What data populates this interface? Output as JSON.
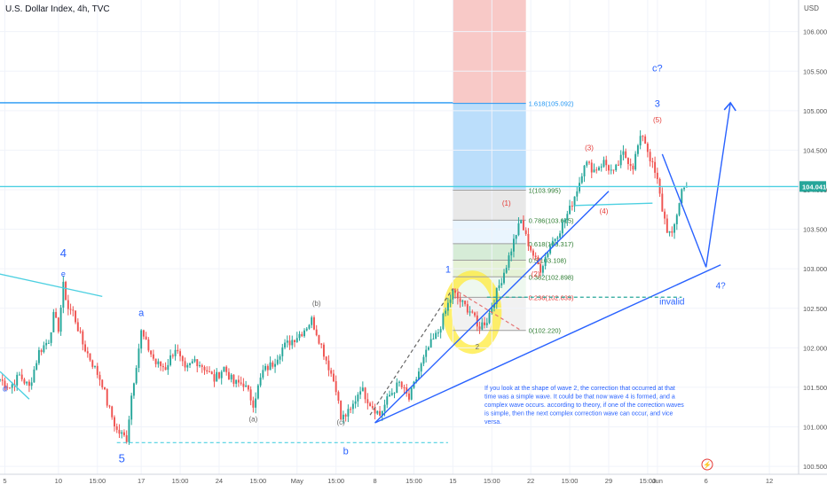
{
  "header": {
    "title": "U.S. Dollar Index, 4h, TVC",
    "currency": "USD"
  },
  "colors": {
    "up": "#26a69a",
    "down": "#ef5350",
    "wave": "#2962ff",
    "sub": "#e53935",
    "cyan": "#4dd0e1",
    "fib_blue": "#2196f3",
    "last_price_bg": "#26a69a",
    "highlight": "#ffeb3b",
    "red_zone": "#f8c9c7",
    "blue_zone": "#bbdefb"
  },
  "chart_data": {
    "type": "candlestick",
    "ylim": [
      100.4,
      106.4
    ],
    "xlim": [
      0,
      164
    ],
    "y_ticks": [
      "106.000",
      "105.500",
      "105.000",
      "104.500",
      "104.000",
      "103.500",
      "103.000",
      "102.500",
      "102.000",
      "101.500",
      "101.000",
      "100.500"
    ],
    "y_tick_values": [
      106.0,
      105.5,
      105.0,
      104.5,
      104.0,
      103.5,
      103.0,
      102.5,
      102.0,
      101.5,
      101.0,
      100.5
    ],
    "x_ticks": [
      {
        "label": "5",
        "x": 1
      },
      {
        "label": "10",
        "x": 12
      },
      {
        "label": "15:00",
        "x": 20
      },
      {
        "label": "17",
        "x": 29
      },
      {
        "label": "15:00",
        "x": 37
      },
      {
        "label": "24",
        "x": 45
      },
      {
        "label": "15:00",
        "x": 53
      },
      {
        "label": "May",
        "x": 61
      },
      {
        "label": "15:00",
        "x": 69
      },
      {
        "label": "8",
        "x": 77
      },
      {
        "label": "15:00",
        "x": 85
      },
      {
        "label": "15",
        "x": 93
      },
      {
        "label": "15:00",
        "x": 101
      },
      {
        "label": "22",
        "x": 109
      },
      {
        "label": "15:00",
        "x": 117
      },
      {
        "label": "29",
        "x": 125
      },
      {
        "label": "15:00",
        "x": 133
      },
      {
        "label": "Jun",
        "x": 135
      },
      {
        "label": "6",
        "x": 145
      },
      {
        "label": "12",
        "x": 158
      }
    ],
    "last_price": "104.041",
    "last_price_value": 104.041,
    "path": [
      [
        0,
        101.6
      ],
      [
        2,
        101.5
      ],
      [
        4,
        101.65
      ],
      [
        6,
        101.5
      ],
      [
        8,
        101.95
      ],
      [
        10,
        102.1
      ],
      [
        11,
        102.4
      ],
      [
        12,
        102.25
      ],
      [
        13,
        102.78
      ],
      [
        14,
        102.5
      ],
      [
        15,
        102.45
      ],
      [
        17,
        102.05
      ],
      [
        19,
        101.8
      ],
      [
        21,
        101.55
      ],
      [
        22,
        101.3
      ],
      [
        24,
        100.95
      ],
      [
        26,
        100.85
      ],
      [
        27,
        101.4
      ],
      [
        28,
        101.8
      ],
      [
        29,
        102.2
      ],
      [
        30,
        102.05
      ],
      [
        32,
        101.8
      ],
      [
        34,
        101.75
      ],
      [
        36,
        102.0
      ],
      [
        38,
        101.7
      ],
      [
        40,
        101.85
      ],
      [
        42,
        101.75
      ],
      [
        44,
        101.6
      ],
      [
        46,
        101.75
      ],
      [
        48,
        101.55
      ],
      [
        50,
        101.55
      ],
      [
        52,
        101.3
      ],
      [
        54,
        101.7
      ],
      [
        56,
        101.8
      ],
      [
        58,
        102.0
      ],
      [
        60,
        102.1
      ],
      [
        62,
        102.2
      ],
      [
        64,
        102.35
      ],
      [
        65,
        102.2
      ],
      [
        67,
        101.85
      ],
      [
        69,
        101.5
      ],
      [
        70,
        101.1
      ],
      [
        72,
        101.2
      ],
      [
        74,
        101.5
      ],
      [
        76,
        101.3
      ],
      [
        78,
        101.15
      ],
      [
        80,
        101.4
      ],
      [
        82,
        101.55
      ],
      [
        84,
        101.35
      ],
      [
        86,
        101.7
      ],
      [
        88,
        102.0
      ],
      [
        90,
        102.2
      ],
      [
        92,
        102.55
      ],
      [
        93,
        102.7
      ],
      [
        95,
        102.55
      ],
      [
        97,
        102.45
      ],
      [
        98,
        102.25
      ],
      [
        100,
        102.35
      ],
      [
        102,
        102.7
      ],
      [
        104,
        103.05
      ],
      [
        106,
        103.45
      ],
      [
        107,
        103.6
      ],
      [
        108,
        103.4
      ],
      [
        110,
        103.1
      ],
      [
        111,
        103.0
      ],
      [
        113,
        103.3
      ],
      [
        115,
        103.5
      ],
      [
        117,
        103.75
      ],
      [
        119,
        104.1
      ],
      [
        120,
        104.35
      ],
      [
        122,
        104.25
      ],
      [
        124,
        104.35
      ],
      [
        126,
        104.2
      ],
      [
        128,
        104.45
      ],
      [
        130,
        104.3
      ],
      [
        131,
        104.55
      ],
      [
        132,
        104.7
      ],
      [
        133,
        104.5
      ],
      [
        134,
        104.3
      ],
      [
        135,
        104.1
      ],
      [
        136,
        103.75
      ],
      [
        137,
        103.5
      ],
      [
        138,
        103.4
      ],
      [
        139,
        103.7
      ],
      [
        140,
        104.0
      ],
      [
        141,
        104.04
      ]
    ],
    "trend_lines": [
      {
        "from": [
          -5,
          103.0
        ],
        "to": [
          21,
          102.65
        ],
        "color": "cyan"
      },
      {
        "from": [
          0,
          101.7
        ],
        "to": [
          6,
          101.35
        ],
        "color": "cyan"
      },
      {
        "from": [
          118,
          103.8
        ],
        "to": [
          134,
          103.83
        ],
        "color": "cyan"
      },
      {
        "from": [
          77,
          101.05
        ],
        "to": [
          125,
          103.98
        ],
        "color": "wave"
      },
      {
        "from": [
          77,
          101.05
        ],
        "to": [
          148,
          103.05
        ],
        "color": "wave"
      },
      {
        "from": [
          136,
          104.45
        ],
        "to": [
          145,
          103.02
        ],
        "color": "wave"
      },
      {
        "from": [
          145,
          103.02
        ],
        "to": [
          150,
          105.1
        ],
        "color": "wave"
      },
      {
        "from": [
          0,
          105.1
        ],
        "to": [
          93,
          105.1
        ],
        "color": "fib_blue"
      },
      {
        "from": [
          0,
          104.04
        ],
        "to": [
          164,
          104.04
        ],
        "color": "cyan"
      }
    ],
    "dashed_lines": [
      {
        "from": [
          24,
          100.8
        ],
        "to": [
          92,
          100.8
        ],
        "color": "cyan"
      },
      {
        "from": [
          100,
          102.64
        ],
        "to": [
          140,
          102.64
        ],
        "color": "teal"
      },
      {
        "from": [
          76,
          101.15
        ],
        "to": [
          93,
          102.75
        ],
        "color": "grey"
      },
      {
        "from": [
          93,
          102.75
        ],
        "to": [
          107,
          102.22
        ],
        "color": "red"
      }
    ],
    "fib": {
      "x_start": 93,
      "x_end": 108,
      "levels": [
        {
          "label": "1.618(105.092)",
          "value": 105.092
        },
        {
          "label": "1(103.995)",
          "value": 103.995
        },
        {
          "label": "0.786(103.615)",
          "value": 103.615
        },
        {
          "label": "0.618(103.317)",
          "value": 103.317
        },
        {
          "label": "0.5(103.108)",
          "value": 103.108
        },
        {
          "label": "0.382(102.898)",
          "value": 102.898
        },
        {
          "label": "0.236(102.639)",
          "value": 102.639
        },
        {
          "label": "0(102.220)",
          "value": 102.22
        }
      ]
    },
    "wave_labels": [
      {
        "text": "4",
        "x": 13,
        "y": 103.15,
        "color": "wave",
        "size": 13
      },
      {
        "text": "e",
        "x": 13,
        "y": 102.9,
        "color": "wave",
        "size": 9
      },
      {
        "text": "d",
        "x": 1,
        "y": 101.45,
        "color": "wave",
        "size": 9
      },
      {
        "text": "5",
        "x": 25,
        "y": 100.55,
        "color": "wave",
        "size": 13
      },
      {
        "text": "a",
        "x": 29,
        "y": 102.4,
        "color": "wave",
        "size": 11
      },
      {
        "text": "(a)",
        "x": 52,
        "y": 101.07,
        "color": "grey",
        "size": 8
      },
      {
        "text": "(b)",
        "x": 65,
        "y": 102.53,
        "color": "grey",
        "size": 8
      },
      {
        "text": "(c)",
        "x": 70,
        "y": 101.03,
        "color": "grey",
        "size": 8
      },
      {
        "text": "b",
        "x": 71,
        "y": 100.65,
        "color": "wave",
        "size": 11
      },
      {
        "text": "1",
        "x": 92,
        "y": 102.95,
        "color": "wave",
        "size": 11
      },
      {
        "text": "2",
        "x": 98,
        "y": 101.98,
        "color": "grey",
        "size": 8
      },
      {
        "text": "(1)",
        "x": 104,
        "y": 103.8,
        "color": "sub",
        "size": 8
      },
      {
        "text": "(2)",
        "x": 110,
        "y": 102.9,
        "color": "sub",
        "size": 8
      },
      {
        "text": "(3)",
        "x": 121,
        "y": 104.5,
        "color": "sub",
        "size": 8
      },
      {
        "text": "(4)",
        "x": 124,
        "y": 103.7,
        "color": "sub",
        "size": 8
      },
      {
        "text": "(5)",
        "x": 135,
        "y": 104.85,
        "color": "sub",
        "size": 8
      },
      {
        "text": "3",
        "x": 135,
        "y": 105.05,
        "color": "wave",
        "size": 11
      },
      {
        "text": "c?",
        "x": 135,
        "y": 105.5,
        "color": "wave",
        "size": 11
      },
      {
        "text": "4?",
        "x": 148,
        "y": 102.75,
        "color": "wave",
        "size": 10
      },
      {
        "text": "invalid",
        "x": 138,
        "y": 102.55,
        "color": "wave",
        "size": 10
      }
    ],
    "annotation": "If you look at the shape of wave 2, the correction that occurred at that time was a simple wave. It could be that now wave 4 is formed, and a complex wave occurs. according to theory, if one of the correction waves is simple, then the next complex correction wave can occur, and vice versa."
  }
}
